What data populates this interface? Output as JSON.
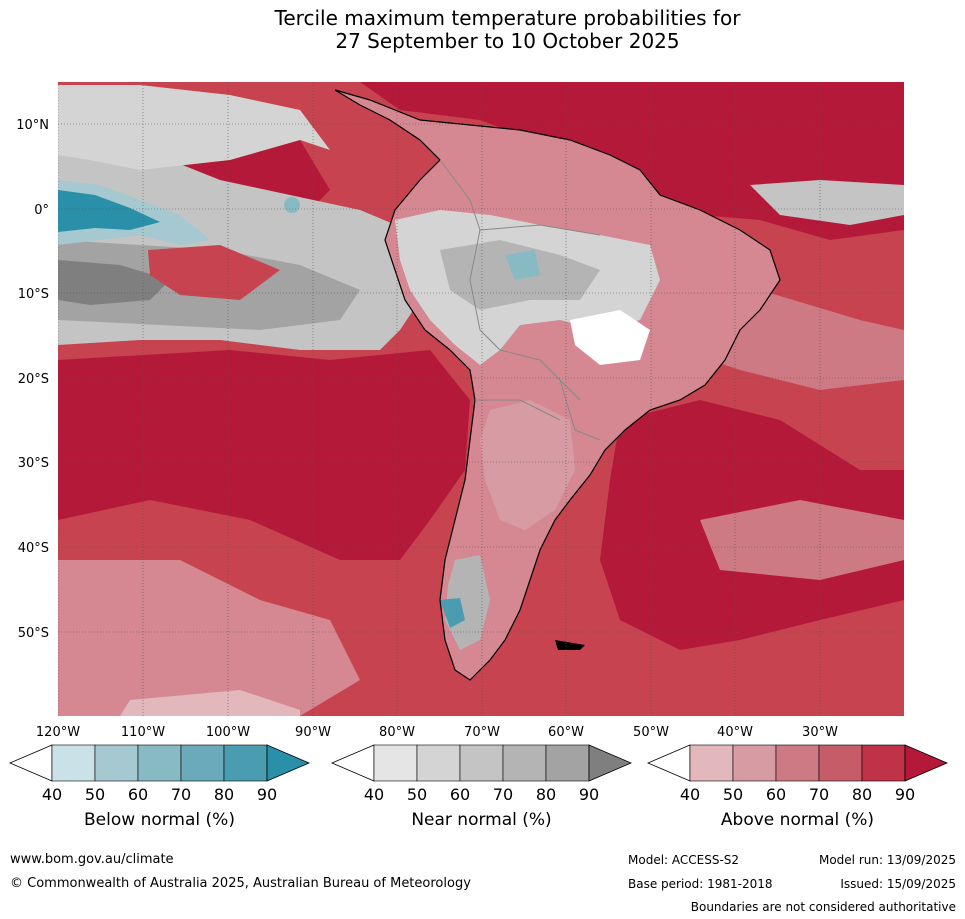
{
  "title_line1": "Tercile maximum temperature probabilities for",
  "title_line2": "27 September to 10 October 2025",
  "map": {
    "lat_labels": [
      "10°N",
      "0°",
      "10°S",
      "20°S",
      "30°S",
      "40°S",
      "50°S"
    ],
    "lon_labels": [
      "120°W",
      "110°W",
      "100°W",
      "90°W",
      "80°W",
      "70°W",
      "60°W",
      "50°W",
      "40°W",
      "30°W"
    ],
    "colors": {
      "ocean_above": "#c6434f",
      "deep_above": "#b5193a",
      "land_above": "#d58891",
      "near_normal": "#a9a9a9",
      "below_normal": "#2a8fa8"
    }
  },
  "colorbars": [
    {
      "title": "Below normal (%)",
      "ticks": [
        "40",
        "50",
        "60",
        "70",
        "80",
        "90"
      ],
      "colors": [
        "#ffffff",
        "#c9e1e7",
        "#a6c8d0",
        "#88bac4",
        "#6aaaba",
        "#4a9db0",
        "#2a8fa8"
      ]
    },
    {
      "title": "Near normal (%)",
      "ticks": [
        "40",
        "50",
        "60",
        "70",
        "80",
        "90"
      ],
      "colors": [
        "#ffffff",
        "#e5e5e5",
        "#d4d4d4",
        "#c4c4c4",
        "#b4b4b4",
        "#a3a3a3",
        "#7f7f7f"
      ]
    },
    {
      "title": "Above normal (%)",
      "ticks": [
        "40",
        "50",
        "60",
        "70",
        "80",
        "90"
      ],
      "colors": [
        "#ffffff",
        "#e2b8bd",
        "#d79ca3",
        "#ce7a84",
        "#c75c69",
        "#bf3247",
        "#b5193a"
      ]
    }
  ],
  "footer": {
    "website": "www.bom.gov.au/climate",
    "copyright": "© Commonwealth of Australia 2025, Australian Bureau of Meteorology",
    "model": "Model: ACCESS-S2",
    "base_period": "Base period: 1981-2018",
    "model_run": "Model run: 13/09/2025",
    "issued": "Issued: 15/09/2025",
    "disclaimer": "Boundaries are not considered authoritative"
  }
}
